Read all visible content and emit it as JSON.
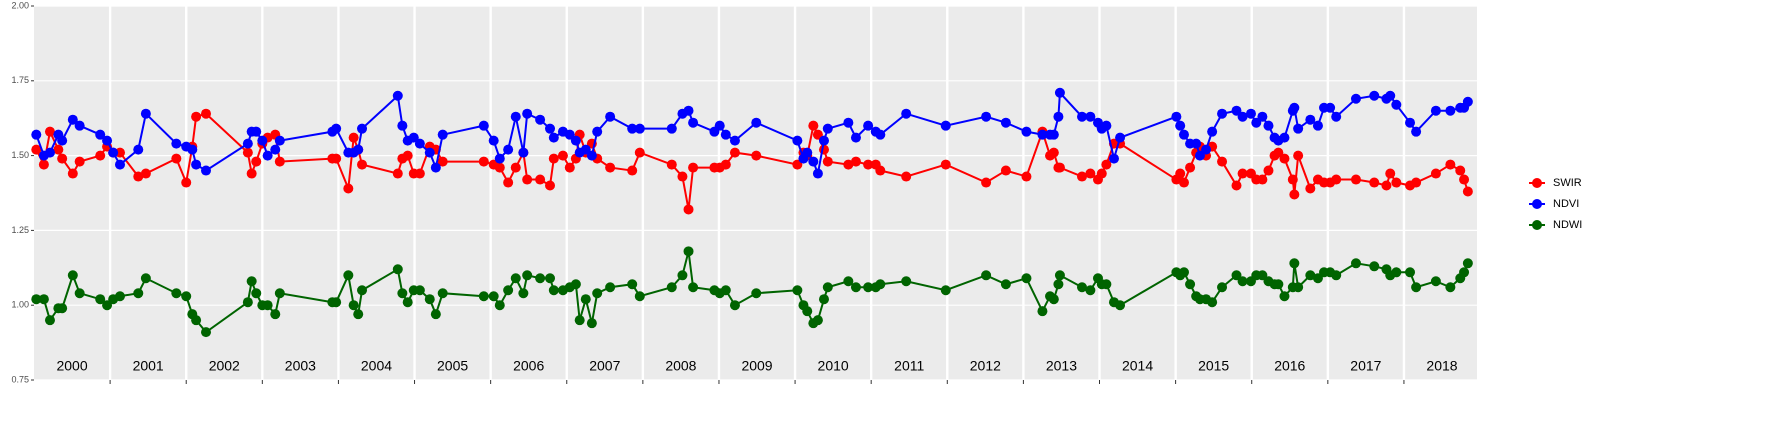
{
  "chart_data": {
    "type": "line",
    "x": [
      2000.03,
      2000.13,
      2000.21,
      2000.32,
      2000.37,
      2000.51,
      2000.6,
      2000.87,
      2000.96,
      2001.04,
      2001.13,
      2001.37,
      2001.47,
      2001.87,
      2002.0,
      2002.08,
      2002.13,
      2002.26,
      2002.81,
      2002.86,
      2002.92,
      2003.0,
      2003.07,
      2003.17,
      2003.23,
      2003.92,
      2003.97,
      2004.13,
      2004.2,
      2004.26,
      2004.31,
      2004.78,
      2004.84,
      2004.91,
      2004.99,
      2005.07,
      2005.2,
      2005.28,
      2005.37,
      2005.91,
      2006.04,
      2006.12,
      2006.23,
      2006.33,
      2006.43,
      2006.48,
      2006.65,
      2006.78,
      2006.83,
      2006.95,
      2007.04,
      2007.12,
      2007.17,
      2007.25,
      2007.33,
      2007.4,
      2007.57,
      2007.86,
      2007.96,
      2008.38,
      2008.52,
      2008.6,
      2008.66,
      2008.94,
      2009.01,
      2009.09,
      2009.21,
      2009.49,
      2010.03,
      2010.11,
      2010.16,
      2010.24,
      2010.3,
      2010.38,
      2010.43,
      2010.7,
      2010.8,
      2010.96,
      2011.06,
      2011.12,
      2011.46,
      2011.98,
      2012.51,
      2012.77,
      2013.04,
      2013.25,
      2013.35,
      2013.4,
      2013.46,
      2013.48,
      2013.77,
      2013.88,
      2013.98,
      2014.03,
      2014.09,
      2014.19,
      2014.27,
      2015.01,
      2015.06,
      2015.11,
      2015.19,
      2015.27,
      2015.32,
      2015.4,
      2015.48,
      2015.61,
      2015.8,
      2015.88,
      2015.99,
      2016.06,
      2016.14,
      2016.22,
      2016.3,
      2016.35,
      2016.43,
      2016.54,
      2016.56,
      2016.61,
      2016.77,
      2016.87,
      2016.95,
      2017.03,
      2017.11,
      2017.37,
      2017.61,
      2017.77,
      2017.82,
      2017.9,
      2018.08,
      2018.16,
      2018.42,
      2018.61,
      2018.74,
      2018.79,
      2018.84
    ],
    "series": [
      {
        "name": "SWIR",
        "color": "#ff0000",
        "values": [
          1.52,
          1.47,
          1.58,
          1.52,
          1.49,
          1.44,
          1.48,
          1.5,
          1.53,
          1.51,
          1.51,
          1.43,
          1.44,
          1.49,
          1.41,
          1.53,
          1.63,
          1.64,
          1.51,
          1.44,
          1.48,
          1.54,
          1.56,
          1.57,
          1.48,
          1.49,
          1.49,
          1.39,
          1.56,
          1.52,
          1.47,
          1.44,
          1.49,
          1.5,
          1.44,
          1.44,
          1.53,
          1.52,
          1.48,
          1.48,
          1.47,
          1.46,
          1.41,
          1.46,
          1.51,
          1.42,
          1.42,
          1.4,
          1.49,
          1.5,
          1.46,
          1.49,
          1.57,
          1.51,
          1.54,
          1.49,
          1.46,
          1.45,
          1.51,
          1.47,
          1.43,
          1.32,
          1.46,
          1.46,
          1.46,
          1.47,
          1.51,
          1.5,
          1.47,
          1.51,
          1.5,
          1.6,
          1.57,
          1.52,
          1.48,
          1.47,
          1.48,
          1.47,
          1.47,
          1.45,
          1.43,
          1.47,
          1.41,
          1.45,
          1.43,
          1.58,
          1.5,
          1.51,
          1.46,
          1.46,
          1.43,
          1.44,
          1.42,
          1.44,
          1.47,
          1.54,
          1.54,
          1.42,
          1.44,
          1.41,
          1.46,
          1.51,
          1.53,
          1.5,
          1.53,
          1.48,
          1.4,
          1.44,
          1.44,
          1.42,
          1.42,
          1.45,
          1.5,
          1.51,
          1.49,
          1.42,
          1.37,
          1.5,
          1.39,
          1.42,
          1.41,
          1.41,
          1.42,
          1.42,
          1.41,
          1.4,
          1.44,
          1.41,
          1.4,
          1.41,
          1.44,
          1.47,
          1.45,
          1.42,
          1.38
        ]
      },
      {
        "name": "NDVI",
        "color": "#0000ff",
        "values": [
          1.57,
          1.5,
          1.51,
          1.57,
          1.55,
          1.62,
          1.6,
          1.57,
          1.55,
          1.51,
          1.47,
          1.52,
          1.64,
          1.54,
          1.53,
          1.52,
          1.47,
          1.45,
          1.54,
          1.58,
          1.58,
          1.55,
          1.5,
          1.52,
          1.55,
          1.58,
          1.59,
          1.51,
          1.51,
          1.52,
          1.59,
          1.7,
          1.6,
          1.55,
          1.56,
          1.54,
          1.51,
          1.46,
          1.57,
          1.6,
          1.55,
          1.49,
          1.52,
          1.63,
          1.51,
          1.64,
          1.62,
          1.59,
          1.56,
          1.58,
          1.57,
          1.55,
          1.51,
          1.52,
          1.5,
          1.58,
          1.63,
          1.59,
          1.59,
          1.59,
          1.64,
          1.65,
          1.61,
          1.58,
          1.6,
          1.57,
          1.55,
          1.61,
          1.55,
          1.49,
          1.51,
          1.48,
          1.44,
          1.55,
          1.59,
          1.61,
          1.56,
          1.6,
          1.58,
          1.57,
          1.64,
          1.6,
          1.63,
          1.61,
          1.58,
          1.57,
          1.57,
          1.57,
          1.63,
          1.71,
          1.63,
          1.63,
          1.61,
          1.59,
          1.6,
          1.49,
          1.56,
          1.63,
          1.6,
          1.57,
          1.54,
          1.54,
          1.5,
          1.52,
          1.58,
          1.64,
          1.65,
          1.63,
          1.64,
          1.61,
          1.63,
          1.6,
          1.56,
          1.55,
          1.56,
          1.65,
          1.66,
          1.59,
          1.62,
          1.6,
          1.66,
          1.66,
          1.63,
          1.69,
          1.7,
          1.69,
          1.7,
          1.67,
          1.61,
          1.58,
          1.65,
          1.65,
          1.66,
          1.66,
          1.68
        ]
      },
      {
        "name": "NDWI",
        "color": "#006400",
        "values": [
          1.02,
          1.02,
          0.95,
          0.99,
          0.99,
          1.1,
          1.04,
          1.02,
          1.0,
          1.02,
          1.03,
          1.04,
          1.09,
          1.04,
          1.03,
          0.97,
          0.95,
          0.91,
          1.01,
          1.08,
          1.04,
          1.0,
          1.0,
          0.97,
          1.04,
          1.01,
          1.01,
          1.1,
          1.0,
          0.97,
          1.05,
          1.12,
          1.04,
          1.01,
          1.05,
          1.05,
          1.02,
          0.97,
          1.04,
          1.03,
          1.03,
          1.0,
          1.05,
          1.09,
          1.04,
          1.1,
          1.09,
          1.09,
          1.05,
          1.05,
          1.06,
          1.07,
          0.95,
          1.02,
          0.94,
          1.04,
          1.06,
          1.07,
          1.03,
          1.06,
          1.1,
          1.18,
          1.06,
          1.05,
          1.04,
          1.05,
          1.0,
          1.04,
          1.05,
          1.0,
          0.98,
          0.94,
          0.95,
          1.02,
          1.06,
          1.08,
          1.06,
          1.06,
          1.06,
          1.07,
          1.08,
          1.05,
          1.1,
          1.07,
          1.09,
          0.98,
          1.03,
          1.02,
          1.07,
          1.1,
          1.06,
          1.05,
          1.09,
          1.07,
          1.07,
          1.01,
          1.0,
          1.11,
          1.1,
          1.11,
          1.07,
          1.03,
          1.02,
          1.02,
          1.01,
          1.06,
          1.1,
          1.08,
          1.08,
          1.1,
          1.1,
          1.08,
          1.07,
          1.07,
          1.03,
          1.06,
          1.14,
          1.06,
          1.1,
          1.09,
          1.11,
          1.11,
          1.1,
          1.14,
          1.13,
          1.12,
          1.1,
          1.11,
          1.11,
          1.06,
          1.08,
          1.06,
          1.09,
          1.11,
          1.14
        ]
      }
    ],
    "xlim": [
      2000,
      2018.96
    ],
    "xticks": [
      {
        "value": 2000.5,
        "label": "2000"
      },
      {
        "value": 2001.5,
        "label": "2001"
      },
      {
        "value": 2002.5,
        "label": "2002"
      },
      {
        "value": 2003.5,
        "label": "2003"
      },
      {
        "value": 2004.5,
        "label": "2004"
      },
      {
        "value": 2005.5,
        "label": "2005"
      },
      {
        "value": 2006.5,
        "label": "2006"
      },
      {
        "value": 2007.5,
        "label": "2007"
      },
      {
        "value": 2008.5,
        "label": "2008"
      },
      {
        "value": 2009.5,
        "label": "2009"
      },
      {
        "value": 2010.5,
        "label": "2010"
      },
      {
        "value": 2011.5,
        "label": "2011"
      },
      {
        "value": 2012.5,
        "label": "2012"
      },
      {
        "value": 2013.5,
        "label": "2013"
      },
      {
        "value": 2014.5,
        "label": "2014"
      },
      {
        "value": 2015.5,
        "label": "2015"
      },
      {
        "value": 2016.5,
        "label": "2016"
      },
      {
        "value": 2017.5,
        "label": "2017"
      },
      {
        "value": 2018.5,
        "label": "2018"
      }
    ],
    "xgrid": [
      2001,
      2002,
      2003,
      2004,
      2005,
      2006,
      2007,
      2008,
      2009,
      2010,
      2011,
      2012,
      2013,
      2014,
      2015,
      2016,
      2017,
      2018
    ],
    "ylim": [
      0.75,
      2
    ],
    "yticks": [
      {
        "value": 0.75,
        "label": "0.75"
      },
      {
        "value": 1,
        "label": "1.00"
      },
      {
        "value": 1.25,
        "label": "1.25"
      },
      {
        "value": 1.5,
        "label": "1.50"
      },
      {
        "value": 1.75,
        "label": "1.75"
      },
      {
        "value": 2,
        "label": "2.00"
      }
    ],
    "grid": true
  }
}
